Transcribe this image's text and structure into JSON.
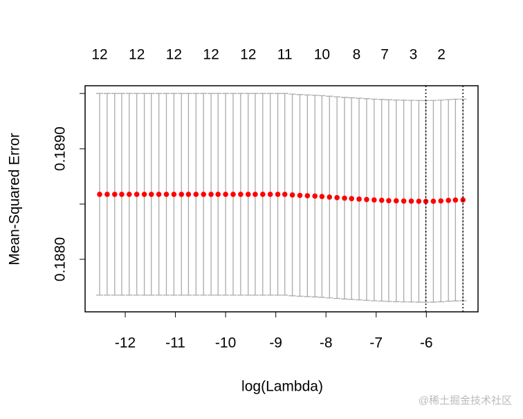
{
  "chart_data": {
    "type": "errorbar",
    "xlabel": "log(Lambda)",
    "ylabel": "Mean-Squared Error",
    "xlim": [
      -12.8,
      -4.97
    ],
    "ylim": [
      0.187525,
      0.18957
    ],
    "xticks": [
      -12,
      -11,
      -10,
      -9,
      -8,
      -7,
      -6
    ],
    "yticks": [
      {
        "value": 0.188,
        "label": "0.1880"
      },
      {
        "value": 0.1885,
        "label": null
      },
      {
        "value": 0.189,
        "label": "0.1890"
      },
      {
        "value": 0.1895,
        "label": null
      }
    ],
    "top_ticks": [
      {
        "value": -12.51,
        "label": "12"
      },
      {
        "value": -11.77,
        "label": "12"
      },
      {
        "value": -11.03,
        "label": "12"
      },
      {
        "value": -10.29,
        "label": "12"
      },
      {
        "value": -9.55,
        "label": "12"
      },
      {
        "value": -8.82,
        "label": "11"
      },
      {
        "value": -8.08,
        "label": "10"
      },
      {
        "value": -7.39,
        "label": "8"
      },
      {
        "value": -6.83,
        "label": "7"
      },
      {
        "value": -6.26,
        "label": "3"
      },
      {
        "value": -5.7,
        "label": "2"
      }
    ],
    "vlines": [
      -6.01,
      -5.27
    ],
    "x": [
      -12.51,
      -12.36,
      -12.21,
      -12.07,
      -11.92,
      -11.77,
      -11.62,
      -11.48,
      -11.33,
      -11.18,
      -11.03,
      -10.88,
      -10.74,
      -10.59,
      -10.44,
      -10.29,
      -10.15,
      -10.0,
      -9.85,
      -9.7,
      -9.55,
      -9.41,
      -9.26,
      -9.11,
      -8.96,
      -8.82,
      -8.67,
      -8.52,
      -8.37,
      -8.22,
      -8.08,
      -7.93,
      -7.78,
      -7.63,
      -7.49,
      -7.34,
      -7.19,
      -7.04,
      -6.89,
      -6.75,
      -6.6,
      -6.45,
      -6.3,
      -6.15,
      -6.01,
      -5.86,
      -5.71,
      -5.56,
      -5.42,
      -5.27
    ],
    "series": [
      {
        "color": "#ff0000",
        "error_color": "#aaaaaa",
        "values": [
          0.188588,
          0.188588,
          0.188588,
          0.188588,
          0.188588,
          0.188588,
          0.188588,
          0.188588,
          0.188588,
          0.188588,
          0.188588,
          0.188588,
          0.188588,
          0.188588,
          0.188588,
          0.188588,
          0.188588,
          0.188588,
          0.188588,
          0.188588,
          0.188588,
          0.188588,
          0.188588,
          0.188588,
          0.188588,
          0.188588,
          0.188582,
          0.188578,
          0.188575,
          0.188572,
          0.188568,
          0.188563,
          0.188558,
          0.188553,
          0.188549,
          0.188545,
          0.188541,
          0.188537,
          0.188534,
          0.188531,
          0.188529,
          0.188527,
          0.188526,
          0.188525,
          0.188524,
          0.188525,
          0.188528,
          0.188533,
          0.188536,
          0.188537
        ],
        "errors": [
          0.000912,
          0.000912,
          0.000912,
          0.000912,
          0.000912,
          0.000912,
          0.000912,
          0.000912,
          0.000912,
          0.000912,
          0.000912,
          0.000912,
          0.000912,
          0.000912,
          0.000912,
          0.000912,
          0.000912,
          0.000912,
          0.000912,
          0.000912,
          0.000912,
          0.000912,
          0.000912,
          0.000912,
          0.000912,
          0.000912,
          0.000912,
          0.000912,
          0.000912,
          0.000912,
          0.000912,
          0.000912,
          0.000912,
          0.000912,
          0.000912,
          0.000912,
          0.000912,
          0.000912,
          0.000912,
          0.000912,
          0.000912,
          0.000912,
          0.000912,
          0.000912,
          0.000912,
          0.000912,
          0.000912,
          0.000912,
          0.000912,
          0.000912
        ]
      }
    ],
    "watermark": "@稀土掘金技术社区"
  }
}
